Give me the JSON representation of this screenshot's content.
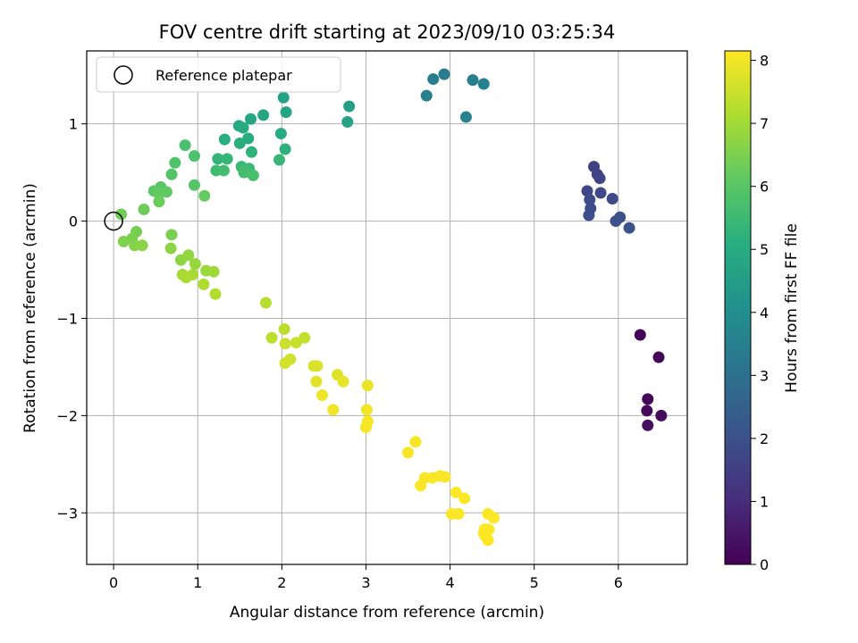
{
  "chart_data": {
    "type": "scatter",
    "title": "FOV centre drift starting at 2023/09/10 03:25:34",
    "xlabel": "Angular distance from reference (arcmin)",
    "ylabel": "Rotation from reference (arcmin)",
    "xlim": [
      -0.32,
      6.82
    ],
    "ylim": [
      -3.53,
      1.75
    ],
    "xticks": [
      0,
      1,
      2,
      3,
      4,
      5,
      6
    ],
    "yticks": [
      -3,
      -2,
      -1,
      0,
      1
    ],
    "grid": true,
    "legend": {
      "placement": "top-left",
      "entries": [
        "Reference platepar"
      ]
    },
    "reference_point": {
      "x": 0,
      "y": 0
    },
    "colorbar": {
      "label": "Hours from first FF file",
      "range": [
        0,
        8.15
      ],
      "ticks": [
        0,
        1,
        2,
        3,
        4,
        5,
        6,
        7,
        8
      ],
      "colormap": "viridis"
    },
    "points": [
      {
        "x": 6.26,
        "y": -1.17,
        "t": 0.05
      },
      {
        "x": 6.48,
        "y": -1.4,
        "t": 0.1
      },
      {
        "x": 6.35,
        "y": -1.83,
        "t": 0.15
      },
      {
        "x": 6.34,
        "y": -1.95,
        "t": 0.2
      },
      {
        "x": 6.51,
        "y": -2.0,
        "t": 0.25
      },
      {
        "x": 6.35,
        "y": -2.1,
        "t": 0.3
      },
      {
        "x": 5.71,
        "y": 0.56,
        "t": 1.55
      },
      {
        "x": 5.75,
        "y": 0.48,
        "t": 1.6
      },
      {
        "x": 5.78,
        "y": 0.44,
        "t": 1.65
      },
      {
        "x": 5.63,
        "y": 0.31,
        "t": 1.7
      },
      {
        "x": 5.79,
        "y": 0.29,
        "t": 1.75
      },
      {
        "x": 5.93,
        "y": 0.23,
        "t": 1.8
      },
      {
        "x": 5.66,
        "y": 0.22,
        "t": 1.85
      },
      {
        "x": 5.67,
        "y": 0.13,
        "t": 1.9
      },
      {
        "x": 5.65,
        "y": 0.06,
        "t": 1.95
      },
      {
        "x": 6.02,
        "y": 0.04,
        "t": 2.0
      },
      {
        "x": 5.97,
        "y": 0.0,
        "t": 2.05
      },
      {
        "x": 6.13,
        "y": -0.07,
        "t": 2.1
      },
      {
        "x": 3.93,
        "y": 1.51,
        "t": 3.35
      },
      {
        "x": 3.8,
        "y": 1.46,
        "t": 3.4
      },
      {
        "x": 4.27,
        "y": 1.45,
        "t": 3.45
      },
      {
        "x": 4.4,
        "y": 1.41,
        "t": 3.5
      },
      {
        "x": 3.72,
        "y": 1.29,
        "t": 3.55
      },
      {
        "x": 4.19,
        "y": 1.07,
        "t": 3.6
      },
      {
        "x": 2.8,
        "y": 1.18,
        "t": 4.6
      },
      {
        "x": 2.78,
        "y": 1.02,
        "t": 4.65
      },
      {
        "x": 2.02,
        "y": 1.27,
        "t": 4.7
      },
      {
        "x": 2.05,
        "y": 1.12,
        "t": 4.75
      },
      {
        "x": 1.78,
        "y": 1.09,
        "t": 4.8
      },
      {
        "x": 1.63,
        "y": 1.05,
        "t": 4.85
      },
      {
        "x": 1.49,
        "y": 0.98,
        "t": 4.9
      },
      {
        "x": 1.54,
        "y": 0.96,
        "t": 4.95
      },
      {
        "x": 1.99,
        "y": 0.9,
        "t": 5.0
      },
      {
        "x": 1.6,
        "y": 0.85,
        "t": 5.05
      },
      {
        "x": 1.32,
        "y": 0.84,
        "t": 5.1
      },
      {
        "x": 1.5,
        "y": 0.8,
        "t": 5.15
      },
      {
        "x": 2.04,
        "y": 0.74,
        "t": 5.2
      },
      {
        "x": 1.64,
        "y": 0.71,
        "t": 5.25
      },
      {
        "x": 1.24,
        "y": 0.64,
        "t": 5.3
      },
      {
        "x": 1.35,
        "y": 0.64,
        "t": 5.35
      },
      {
        "x": 1.97,
        "y": 0.63,
        "t": 5.4
      },
      {
        "x": 1.52,
        "y": 0.56,
        "t": 5.45
      },
      {
        "x": 1.61,
        "y": 0.54,
        "t": 5.5
      },
      {
        "x": 1.22,
        "y": 0.52,
        "t": 5.55
      },
      {
        "x": 1.31,
        "y": 0.52,
        "t": 5.6
      },
      {
        "x": 1.55,
        "y": 0.5,
        "t": 5.65
      },
      {
        "x": 1.66,
        "y": 0.47,
        "t": 5.7
      },
      {
        "x": 0.85,
        "y": 0.78,
        "t": 5.75
      },
      {
        "x": 0.96,
        "y": 0.67,
        "t": 5.8
      },
      {
        "x": 0.73,
        "y": 0.6,
        "t": 5.85
      },
      {
        "x": 0.69,
        "y": 0.48,
        "t": 5.9
      },
      {
        "x": 0.96,
        "y": 0.37,
        "t": 5.95
      },
      {
        "x": 0.56,
        "y": 0.35,
        "t": 6.0
      },
      {
        "x": 0.48,
        "y": 0.31,
        "t": 6.05
      },
      {
        "x": 0.63,
        "y": 0.3,
        "t": 6.1
      },
      {
        "x": 0.54,
        "y": 0.28,
        "t": 6.15
      },
      {
        "x": 1.08,
        "y": 0.26,
        "t": 6.2
      },
      {
        "x": 0.54,
        "y": 0.2,
        "t": 6.25
      },
      {
        "x": 0.36,
        "y": 0.12,
        "t": 6.3
      },
      {
        "x": 0.09,
        "y": 0.07,
        "t": 6.35
      },
      {
        "x": 0.27,
        "y": -0.11,
        "t": 6.4
      },
      {
        "x": 0.69,
        "y": -0.14,
        "t": 6.45
      },
      {
        "x": 0.22,
        "y": -0.18,
        "t": 6.5
      },
      {
        "x": 0.12,
        "y": -0.21,
        "t": 6.55
      },
      {
        "x": 0.25,
        "y": -0.25,
        "t": 6.6
      },
      {
        "x": 0.34,
        "y": -0.25,
        "t": 6.65
      },
      {
        "x": 0.68,
        "y": -0.28,
        "t": 6.7
      },
      {
        "x": 0.8,
        "y": -0.4,
        "t": 6.75
      },
      {
        "x": 0.89,
        "y": -0.35,
        "t": 6.8
      },
      {
        "x": 0.97,
        "y": -0.44,
        "t": 6.85
      },
      {
        "x": 1.1,
        "y": -0.51,
        "t": 6.9
      },
      {
        "x": 1.19,
        "y": -0.52,
        "t": 6.95
      },
      {
        "x": 0.82,
        "y": -0.55,
        "t": 7.0
      },
      {
        "x": 0.94,
        "y": -0.55,
        "t": 7.05
      },
      {
        "x": 0.86,
        "y": -0.58,
        "t": 7.1
      },
      {
        "x": 1.07,
        "y": -0.65,
        "t": 7.15
      },
      {
        "x": 1.21,
        "y": -0.75,
        "t": 7.2
      },
      {
        "x": 1.81,
        "y": -0.84,
        "t": 7.25
      },
      {
        "x": 2.03,
        "y": -1.11,
        "t": 7.3
      },
      {
        "x": 1.88,
        "y": -1.2,
        "t": 7.35
      },
      {
        "x": 2.27,
        "y": -1.2,
        "t": 7.4
      },
      {
        "x": 2.17,
        "y": -1.25,
        "t": 7.45
      },
      {
        "x": 2.04,
        "y": -1.26,
        "t": 7.5
      },
      {
        "x": 2.1,
        "y": -1.42,
        "t": 7.55
      },
      {
        "x": 2.04,
        "y": -1.46,
        "t": 7.6
      },
      {
        "x": 2.38,
        "y": -1.49,
        "t": 7.65
      },
      {
        "x": 2.42,
        "y": -1.49,
        "t": 7.7
      },
      {
        "x": 2.66,
        "y": -1.58,
        "t": 7.75
      },
      {
        "x": 2.41,
        "y": -1.65,
        "t": 7.8
      },
      {
        "x": 2.73,
        "y": -1.65,
        "t": 7.85
      },
      {
        "x": 3.02,
        "y": -1.69,
        "t": 7.9
      },
      {
        "x": 2.48,
        "y": -1.79,
        "t": 7.95
      },
      {
        "x": 2.61,
        "y": -1.94,
        "t": 8.0
      },
      {
        "x": 3.01,
        "y": -1.94,
        "t": 8.0
      },
      {
        "x": 3.02,
        "y": -2.06,
        "t": 8.05
      },
      {
        "x": 3.0,
        "y": -2.12,
        "t": 8.05
      },
      {
        "x": 3.59,
        "y": -2.27,
        "t": 8.08
      },
      {
        "x": 3.5,
        "y": -2.38,
        "t": 8.08
      },
      {
        "x": 3.88,
        "y": -2.62,
        "t": 8.1
      },
      {
        "x": 3.94,
        "y": -2.63,
        "t": 8.1
      },
      {
        "x": 3.7,
        "y": -2.64,
        "t": 8.1
      },
      {
        "x": 3.79,
        "y": -2.64,
        "t": 8.1
      },
      {
        "x": 3.65,
        "y": -2.72,
        "t": 8.1
      },
      {
        "x": 4.07,
        "y": -2.79,
        "t": 8.12
      },
      {
        "x": 4.17,
        "y": -2.85,
        "t": 8.12
      },
      {
        "x": 4.02,
        "y": -3.01,
        "t": 8.12
      },
      {
        "x": 4.1,
        "y": -3.01,
        "t": 8.12
      },
      {
        "x": 4.45,
        "y": -3.01,
        "t": 8.13
      },
      {
        "x": 4.52,
        "y": -3.05,
        "t": 8.13
      },
      {
        "x": 4.41,
        "y": -3.17,
        "t": 8.13
      },
      {
        "x": 4.46,
        "y": -3.17,
        "t": 8.13
      },
      {
        "x": 4.4,
        "y": -3.21,
        "t": 8.14
      },
      {
        "x": 4.42,
        "y": -3.24,
        "t": 8.14
      },
      {
        "x": 4.45,
        "y": -3.28,
        "t": 8.15
      }
    ]
  }
}
